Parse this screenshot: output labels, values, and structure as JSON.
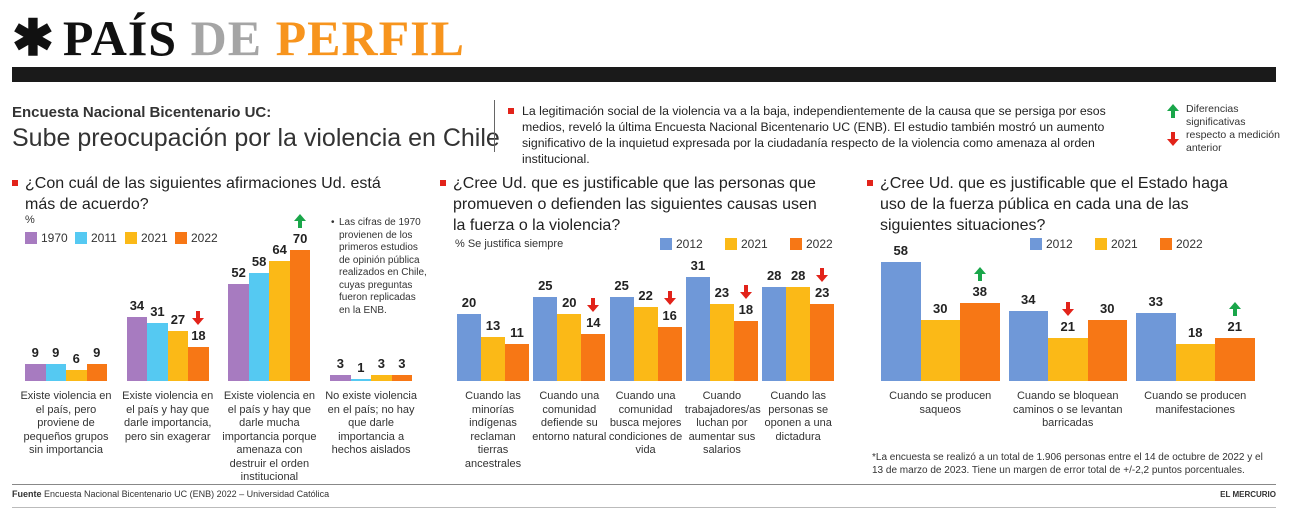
{
  "header": {
    "mark": "✱",
    "title_1": "PAÍS",
    "title_2": "DE",
    "title_3": "PERFIL"
  },
  "intro": {
    "kicker": "Encuesta Nacional Bicentenario UC:",
    "headline": "Sube preocupación por la violencia en Chile",
    "text": "La legitimación social de la violencia va a la baja, independientemente de la causa que se persiga por esos medios, reveló la última Encuesta Nacional Bicentenario UC (ENB). El estudio también mostró un aumento significativo de la inquietud expresada por la ciudadanía respecto de la violencia como amenaza al orden institucional."
  },
  "legend_note": {
    "text": "Diferencias significativas respecto a medición anterior"
  },
  "chart_data": [
    {
      "type": "bar",
      "title": "¿Con cuál de las siguientes afirmaciones Ud. está más de acuerdo?",
      "unit_label": "%",
      "note": "Las cifras de 1970 provienen de los primeros estudios de opinión pública realizados en Chile, cuyas preguntas fueron replicadas en la ENB.",
      "categories": [
        "Existe violencia en el país, pero proviene de pequeños grupos sin importancia",
        "Existe violencia en el país y hay que darle importancia, pero sin exagerar",
        "Existe violencia en el país y hay que darle mucha importancia porque amenaza con destruir el orden institucional",
        "No existe violencia en el país; no hay que darle importancia a hechos aislados"
      ],
      "series": [
        {
          "name": "1970",
          "color": "#a77bc0",
          "values": [
            9,
            34,
            52,
            3
          ],
          "arrows": [
            null,
            null,
            null,
            null
          ]
        },
        {
          "name": "2011",
          "color": "#55c9f2",
          "values": [
            9,
            31,
            58,
            1
          ],
          "arrows": [
            null,
            null,
            null,
            null
          ]
        },
        {
          "name": "2021",
          "color": "#fbb917",
          "values": [
            6,
            27,
            64,
            3
          ],
          "arrows": [
            null,
            null,
            null,
            null
          ]
        },
        {
          "name": "2022",
          "color": "#f77715",
          "values": [
            9,
            18,
            70,
            3
          ],
          "arrows": [
            null,
            "down",
            "up",
            null
          ]
        }
      ]
    },
    {
      "type": "bar",
      "title": "¿Cree Ud. que es justificable que las personas que promueven o defienden las siguientes causas usen la fuerza o la violencia?",
      "unit_label": "% Se justifica siempre",
      "categories": [
        "Cuando las minorías indígenas reclaman tierras ancestrales",
        "Cuando una comunidad defiende su entorno natural",
        "Cuando una comunidad busca mejores condiciones de vida",
        "Cuando trabajadores/as luchan por aumentar sus salarios",
        "Cuando las personas se oponen a una dictadura"
      ],
      "series": [
        {
          "name": "2012",
          "color": "#6f98d8",
          "values": [
            20,
            25,
            25,
            31,
            28
          ],
          "arrows": [
            null,
            null,
            null,
            null,
            null
          ]
        },
        {
          "name": "2021",
          "color": "#fbb917",
          "values": [
            13,
            20,
            22,
            23,
            28
          ],
          "arrows": [
            null,
            null,
            null,
            null,
            null
          ]
        },
        {
          "name": "2022",
          "color": "#f77715",
          "values": [
            11,
            14,
            16,
            18,
            23
          ],
          "arrows": [
            null,
            "down",
            "down",
            "down",
            "down"
          ]
        }
      ]
    },
    {
      "type": "bar",
      "title": "¿Cree Ud. que es justificable que el Estado haga uso de la fuerza pública en cada una de las siguientes situaciones?",
      "note": "*La encuesta se realizó a un total de 1.906 personas entre el 14 de octubre de 2022 y el 13 de marzo de 2023. Tiene un margen de error total de +/-2,2 puntos porcentuales.",
      "categories": [
        "Cuando se producen saqueos",
        "Cuando se bloquean caminos o se levantan barricadas",
        "Cuando se producen manifestaciones"
      ],
      "series": [
        {
          "name": "2012",
          "color": "#6f98d8",
          "values": [
            58,
            34,
            33
          ],
          "arrows": [
            null,
            null,
            null
          ]
        },
        {
          "name": "2021",
          "color": "#fbb917",
          "values": [
            30,
            21,
            18
          ],
          "arrows": [
            null,
            "down",
            null
          ]
        },
        {
          "name": "2022",
          "color": "#f77715",
          "values": [
            38,
            30,
            21
          ],
          "arrows": [
            "up",
            null,
            "up"
          ]
        }
      ]
    }
  ],
  "footer": {
    "source_label": "Fuente",
    "source": "Encuesta Nacional Bicentenario UC (ENB) 2022 – Universidad Católica",
    "brand": "EL MERCURIO"
  }
}
